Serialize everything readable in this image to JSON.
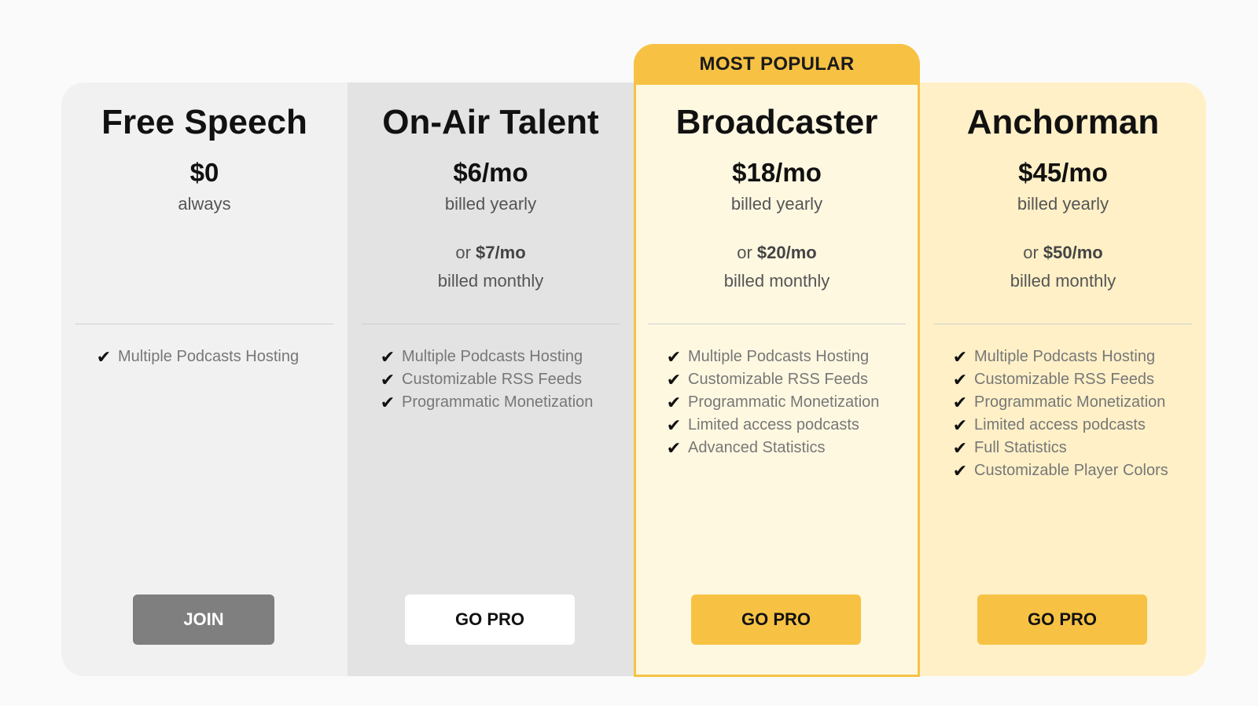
{
  "featured_badge": "MOST POPULAR",
  "colors": {
    "accent": "#f7c244",
    "free_bg": "#f1f1f1",
    "onair_bg": "#e3e3e3",
    "broadcaster_bg": "#fff8e1",
    "anchorman_bg": "#fff0c7",
    "join_button": "#7f7f7f"
  },
  "check_icon": "checkmark-icon",
  "plans": [
    {
      "name": "Free Speech",
      "price": "$0",
      "billing": "always",
      "features": [
        "Multiple Podcasts Hosting"
      ],
      "cta": "JOIN"
    },
    {
      "name": "On-Air Talent",
      "price": "$6/mo",
      "billing": "billed yearly",
      "alt_prefix": "or",
      "alt_price": "$7/mo",
      "alt_billing": "billed monthly",
      "features": [
        "Multiple Podcasts Hosting",
        "Customizable RSS Feeds",
        "Programmatic Monetization"
      ],
      "cta": "GO PRO"
    },
    {
      "name": "Broadcaster",
      "price": "$18/mo",
      "billing": "billed yearly",
      "alt_prefix": "or",
      "alt_price": "$20/mo",
      "alt_billing": "billed monthly",
      "features": [
        "Multiple Podcasts Hosting",
        "Customizable RSS Feeds",
        "Programmatic Monetization",
        "Limited access podcasts",
        "Advanced Statistics"
      ],
      "cta": "GO PRO"
    },
    {
      "name": "Anchorman",
      "price": "$45/mo",
      "billing": "billed yearly",
      "alt_prefix": "or",
      "alt_price": "$50/mo",
      "alt_billing": "billed monthly",
      "features": [
        "Multiple Podcasts Hosting",
        "Customizable RSS Feeds",
        "Programmatic Monetization",
        "Limited access podcasts",
        "Full Statistics",
        "Customizable Player Colors"
      ],
      "cta": "GO PRO"
    }
  ]
}
